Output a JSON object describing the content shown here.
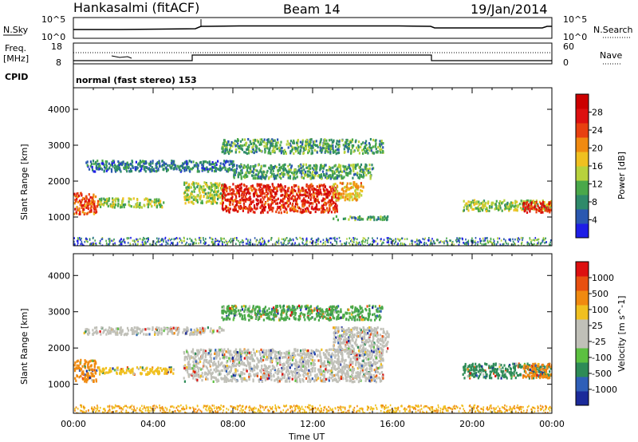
{
  "header": {
    "radar": "Hankasalmi (fitACF)",
    "beam": "Beam 14",
    "date": "19/Jan/2014"
  },
  "top_panels": {
    "nsky_label": "N.Sky",
    "nsearch_label": "N.Search",
    "nsky_ticks": [
      "10^5",
      "10^0"
    ],
    "nsearch_ticks": [
      "10^5",
      "10^0"
    ],
    "freq_label_line1": "Freq.",
    "freq_label_line2": "[MHz]",
    "freq_ticks": [
      "18",
      "8"
    ],
    "nave_label": "Nave",
    "nave_ticks": [
      "60",
      "0"
    ],
    "cpid_label": "CPID",
    "cpid_text": "normal (fast stereo) 153"
  },
  "chart_data": [
    {
      "type": "heatmap",
      "name": "power",
      "ylabel": "Slant Range [km]",
      "y_ticks": [
        "1000",
        "2000",
        "3000",
        "4000"
      ],
      "y_tick_values": [
        1000,
        2000,
        3000,
        4000
      ],
      "ylim": [
        200,
        4600
      ],
      "x_ticks": [
        "00:00",
        "04:00",
        "08:00",
        "12:00",
        "16:00",
        "20:00",
        "00:00"
      ],
      "x_tick_hours": [
        0,
        4,
        8,
        12,
        16,
        20,
        24
      ],
      "xlim_hours": [
        0,
        24
      ],
      "colorbar": {
        "label": "Power [dB]",
        "ticks": [
          "4",
          "8",
          "12",
          "16",
          "20",
          "24",
          "28"
        ],
        "tick_values": [
          4,
          8,
          12,
          16,
          20,
          24,
          28
        ],
        "range": [
          0,
          32
        ],
        "colors": [
          "#1e1ee6",
          "#2a58b0",
          "#2f8a6a",
          "#4aa84a",
          "#b8d23c",
          "#f0c020",
          "#f08a10",
          "#e84010",
          "#dd1010",
          "#cc0000"
        ]
      },
      "regions": [
        {
          "t0": 0.0,
          "t1": 1.2,
          "r0": 1100,
          "r1": 1700,
          "value": 24
        },
        {
          "t0": 0.6,
          "t1": 8.0,
          "r0": 2300,
          "r1": 2600,
          "value": 7
        },
        {
          "t0": 1.2,
          "t1": 4.5,
          "r0": 1300,
          "r1": 1550,
          "value": 14
        },
        {
          "t0": 5.5,
          "t1": 7.5,
          "r0": 1400,
          "r1": 2000,
          "value": 14
        },
        {
          "t0": 7.4,
          "t1": 13.2,
          "r0": 1150,
          "r1": 1950,
          "value": 26
        },
        {
          "t0": 7.4,
          "t1": 15.5,
          "r0": 2800,
          "r1": 3200,
          "value": 10
        },
        {
          "t0": 8.0,
          "t1": 15.0,
          "r0": 2100,
          "r1": 2500,
          "value": 10
        },
        {
          "t0": 13.0,
          "t1": 14.5,
          "r0": 1500,
          "r1": 2000,
          "value": 18
        },
        {
          "t0": 13.0,
          "t1": 15.8,
          "r0": 950,
          "r1": 1050,
          "value": 10
        },
        {
          "t0": 19.5,
          "t1": 24.0,
          "r0": 1200,
          "r1": 1500,
          "value": 14
        },
        {
          "t0": 22.5,
          "t1": 24.0,
          "r0": 1150,
          "r1": 1450,
          "value": 26
        }
      ]
    },
    {
      "type": "heatmap",
      "name": "velocity",
      "ylabel": "Slant Range [km]",
      "y_ticks": [
        "1000",
        "2000",
        "3000",
        "4000"
      ],
      "y_tick_values": [
        1000,
        2000,
        3000,
        4000
      ],
      "ylim": [
        200,
        4600
      ],
      "x_ticks": [
        "00:00",
        "04:00",
        "08:00",
        "12:00",
        "16:00",
        "20:00",
        "00:00"
      ],
      "x_tick_hours": [
        0,
        4,
        8,
        12,
        16,
        20,
        24
      ],
      "xlim_hours": [
        0,
        24
      ],
      "xlabel": "Time UT",
      "colorbar": {
        "label": "Velocity [m s^-1]",
        "ticks": [
          "1000",
          "500",
          "100",
          "25",
          "-25",
          "-100",
          "-500",
          "-1000"
        ],
        "colors": [
          "#1b2a9a",
          "#2f5fb8",
          "#2e8b57",
          "#5cc040",
          "#c0c0b8",
          "#c0c0b8",
          "#f0c020",
          "#f08a10",
          "#e85010",
          "#dd1010"
        ]
      },
      "regions": [
        {
          "t0": 0.0,
          "t1": 1.2,
          "r0": 1100,
          "r1": 1700,
          "level": "-100"
        },
        {
          "t0": 0.5,
          "t1": 7.5,
          "r0": 2400,
          "r1": 2600,
          "level": "ground"
        },
        {
          "t0": 1.2,
          "t1": 5.0,
          "r0": 1300,
          "r1": 1500,
          "level": "-25"
        },
        {
          "t0": 5.5,
          "t1": 15.5,
          "r0": 1100,
          "r1": 2000,
          "level": "ground"
        },
        {
          "t0": 7.4,
          "t1": 15.5,
          "r0": 2800,
          "r1": 3200,
          "level": "100"
        },
        {
          "t0": 13.0,
          "t1": 15.8,
          "r0": 1900,
          "r1": 2600,
          "level": "ground"
        },
        {
          "t0": 19.5,
          "t1": 24.0,
          "r0": 1200,
          "r1": 1600,
          "level": "500"
        },
        {
          "t0": 22.5,
          "t1": 24.0,
          "r0": 1200,
          "r1": 1600,
          "level": "-100"
        }
      ]
    }
  ]
}
